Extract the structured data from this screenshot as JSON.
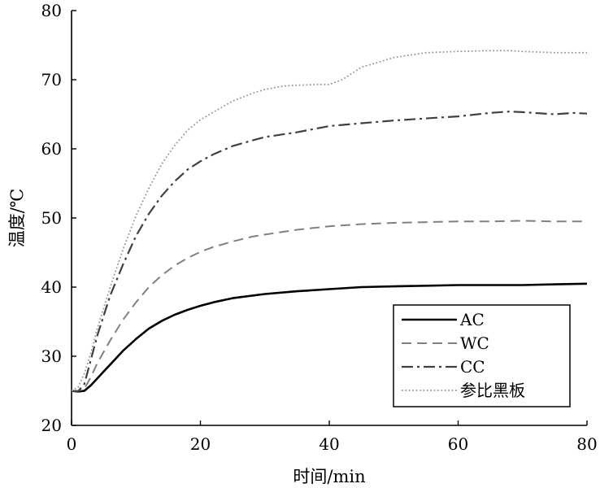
{
  "chart_data": {
    "type": "line",
    "xlabel": "时间/min",
    "ylabel": "温度/℃",
    "xlim": [
      0,
      80
    ],
    "ylim": [
      20,
      80
    ],
    "xticks": [
      0,
      20,
      40,
      60,
      80
    ],
    "yticks": [
      20,
      30,
      40,
      50,
      60,
      70,
      80
    ],
    "grid": false,
    "legend_position": "bottom-right",
    "series": [
      {
        "name": "AC",
        "color": "#000000",
        "dash": "solid",
        "x": [
          0,
          1,
          2,
          3,
          4,
          6,
          8,
          10,
          12,
          14,
          16,
          18,
          20,
          22,
          25,
          30,
          35,
          40,
          45,
          50,
          55,
          60,
          65,
          70,
          75,
          80
        ],
        "y": [
          25,
          24.9,
          25,
          25.8,
          26.8,
          28.8,
          30.8,
          32.5,
          34,
          35.1,
          36,
          36.7,
          37.3,
          37.8,
          38.4,
          39,
          39.4,
          39.7,
          40,
          40.1,
          40.2,
          40.3,
          40.3,
          40.3,
          40.4,
          40.5
        ]
      },
      {
        "name": "WC",
        "color": "#808080",
        "dash": "dashed",
        "x": [
          0,
          1,
          2,
          3,
          4,
          6,
          8,
          10,
          12,
          14,
          16,
          18,
          20,
          22,
          25,
          28,
          30,
          35,
          40,
          45,
          50,
          55,
          60,
          65,
          70,
          75,
          80
        ],
        "y": [
          25,
          25,
          25.3,
          27,
          29,
          32.3,
          35.3,
          37.8,
          40,
          41.7,
          43.1,
          44.2,
          45.1,
          45.8,
          46.6,
          47.3,
          47.6,
          48.3,
          48.8,
          49.1,
          49.3,
          49.4,
          49.5,
          49.5,
          49.6,
          49.5,
          49.5
        ]
      },
      {
        "name": "CC",
        "color": "#404040",
        "dash": "dashdot",
        "x": [
          0,
          1,
          2,
          3,
          4,
          6,
          8,
          10,
          12,
          14,
          16,
          18,
          20,
          22,
          25,
          28,
          30,
          35,
          40,
          45,
          50,
          55,
          60,
          65,
          68,
          70,
          75,
          78,
          80
        ],
        "y": [
          25,
          24.9,
          26,
          29.5,
          33,
          38.8,
          43.3,
          47.4,
          50.6,
          53.2,
          55.3,
          57,
          58.2,
          59.2,
          60.4,
          61.2,
          61.7,
          62.4,
          63.3,
          63.7,
          64.1,
          64.4,
          64.7,
          65.2,
          65.4,
          65.3,
          65,
          65.2,
          65.1
        ]
      },
      {
        "name": "参比黑板",
        "color": "#9a9a9a",
        "dash": "dotted",
        "x": [
          0,
          1,
          2,
          3,
          4,
          6,
          8,
          10,
          12,
          14,
          16,
          18,
          20,
          22,
          25,
          28,
          30,
          33,
          35,
          38,
          40,
          42,
          45,
          50,
          55,
          60,
          65,
          68,
          70,
          75,
          80
        ],
        "y": [
          25,
          25.5,
          27.5,
          30.5,
          34,
          40,
          45.5,
          50.3,
          54.3,
          57.8,
          60.5,
          62.7,
          64.2,
          65.3,
          66.9,
          68,
          68.6,
          69.1,
          69.2,
          69.3,
          69.3,
          70,
          71.8,
          73.2,
          73.9,
          74.1,
          74.2,
          74.2,
          74.1,
          73.9,
          73.9
        ]
      }
    ]
  }
}
